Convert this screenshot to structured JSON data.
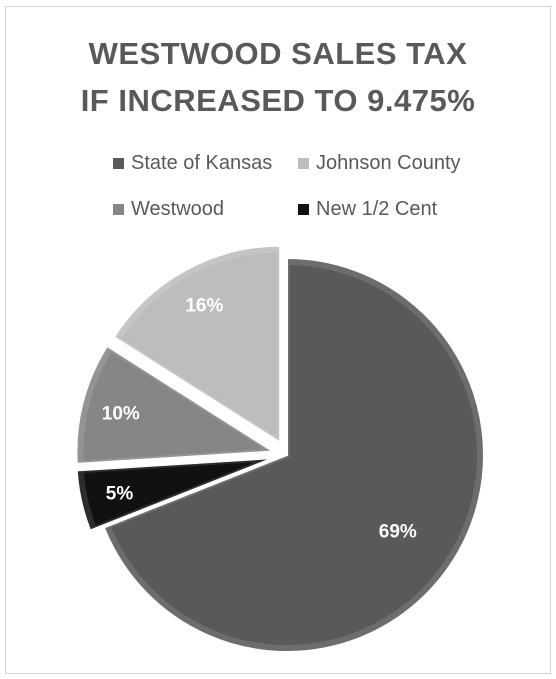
{
  "chart_data": {
    "type": "pie",
    "title_lines": [
      "WESTWOOD SALES TAX",
      "IF INCREASED TO 9.475%"
    ],
    "slices": [
      {
        "name": "State of Kansas",
        "value": 69,
        "label": "69%",
        "color": "#595959",
        "exploded": false
      },
      {
        "name": "New 1/2 Cent",
        "value": 5,
        "label": "5%",
        "color": "#111111",
        "exploded": true
      },
      {
        "name": "Westwood",
        "value": 10,
        "label": "10%",
        "color": "#868686",
        "exploded": true
      },
      {
        "name": "Johnson County",
        "value": 16,
        "label": "16%",
        "color": "#bdbdbd",
        "exploded": true
      }
    ],
    "legend": [
      {
        "name": "State of Kansas",
        "color": "#595959"
      },
      {
        "name": "Johnson County",
        "color": "#bdbdbd"
      },
      {
        "name": "Westwood",
        "color": "#868686"
      },
      {
        "name": "New 1/2 Cent",
        "color": "#111111"
      }
    ],
    "legend_position": "top"
  }
}
